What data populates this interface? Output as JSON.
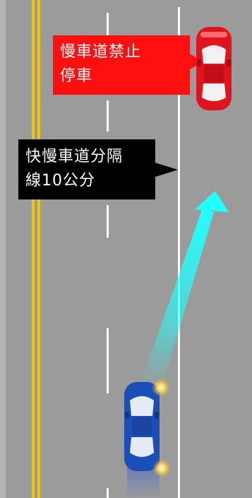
{
  "labels": {
    "no_stopping": {
      "line1": "慢車道禁止",
      "line2": "停車"
    },
    "lane_divider": {
      "line1": "快慢車道分隔",
      "line2": "線10公分"
    }
  },
  "colors": {
    "road": "#9b9b9b",
    "center_line": "#f2c500",
    "lane_line": "#ffffff",
    "red_car": "#e0141e",
    "blue_car": "#1b4fb8",
    "arrow": "#22ffff",
    "red_label_bg": "#ff1010",
    "black_label_bg": "#000000"
  },
  "icons": [
    "red-car-icon",
    "blue-car-icon",
    "arrow-icon",
    "headlight-glow-icon"
  ]
}
